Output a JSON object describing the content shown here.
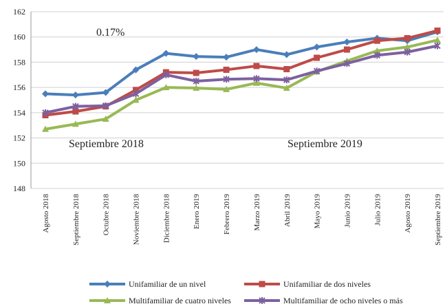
{
  "chart_data": {
    "type": "line",
    "categories": [
      "Agosto 2018",
      "Septiembre 2018",
      "Octubre 2018",
      "Noviembre 2018",
      "Diciembre 2018",
      "Enero 2019",
      "Febrero 2019",
      "Marzo 2019",
      "Abril 2019",
      "Mayo 2019",
      "Junio 2019",
      "Julio 2019",
      "Agosto 2019",
      "Septiembre 2019"
    ],
    "series": [
      {
        "name": "Unifamiliar de un nivel",
        "color": "#4a7ebb",
        "marker": "diamond",
        "values": [
          155.5,
          155.4,
          155.6,
          157.4,
          158.7,
          158.45,
          158.4,
          159.0,
          158.6,
          159.2,
          159.6,
          159.9,
          159.7,
          160.4
        ]
      },
      {
        "name": "Unifamiliar de dos niveles",
        "color": "#be4b48",
        "marker": "square",
        "values": [
          153.8,
          154.1,
          154.5,
          155.8,
          157.2,
          157.15,
          157.4,
          157.7,
          157.45,
          158.35,
          159.0,
          159.7,
          159.9,
          160.5
        ]
      },
      {
        "name": "Multifamiliar de cuatro niveles",
        "color": "#98b954",
        "marker": "triangle",
        "values": [
          152.7,
          153.1,
          153.5,
          155.0,
          156.0,
          155.95,
          155.85,
          156.35,
          155.95,
          157.25,
          158.1,
          158.9,
          159.2,
          159.75
        ]
      },
      {
        "name": "Multifamiliar de ocho niveles o más",
        "color": "#7d60a0",
        "marker": "x",
        "values": [
          154.0,
          154.5,
          154.55,
          155.5,
          157.0,
          156.5,
          156.65,
          156.7,
          156.6,
          157.3,
          157.9,
          158.55,
          158.8,
          159.3
        ]
      }
    ],
    "ylim": [
      148,
      162
    ],
    "yticks": [
      148,
      150,
      152,
      154,
      156,
      158,
      160,
      162
    ],
    "grid": true,
    "annotations": [
      "0.17%",
      "Septiembre 2018",
      "Septiembre 2019"
    ],
    "legend": "bottom"
  }
}
